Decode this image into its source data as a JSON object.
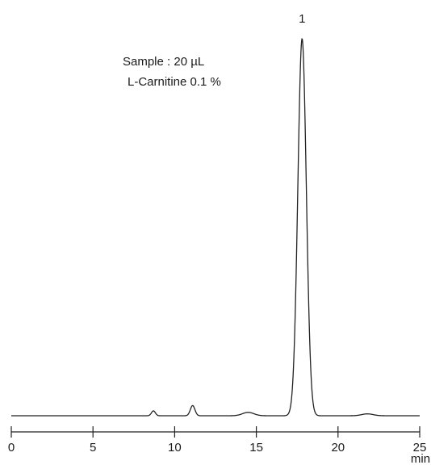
{
  "chart_data": {
    "type": "line",
    "xlabel": "min",
    "ylabel": "",
    "xlim": [
      0,
      25
    ],
    "ylim": [
      0,
      1
    ],
    "grid": false,
    "x_ticks": [
      0,
      5,
      10,
      15,
      20,
      25
    ],
    "annotations": {
      "sample": "Sample : 20 µL",
      "analyte": "L-Carnitine 0.1 %"
    },
    "peaks": [
      {
        "t": 8.7,
        "height": 0.013,
        "width": 0.12
      },
      {
        "t": 11.1,
        "height": 0.027,
        "width": 0.14
      },
      {
        "t": 14.5,
        "height": 0.009,
        "width": 0.35
      },
      {
        "t": 17.8,
        "height": 1.0,
        "width": 0.26,
        "label": "1"
      },
      {
        "t": 21.8,
        "height": 0.005,
        "width": 0.35
      }
    ],
    "colors": {
      "trace": "#222222",
      "axis": "#222222"
    }
  }
}
